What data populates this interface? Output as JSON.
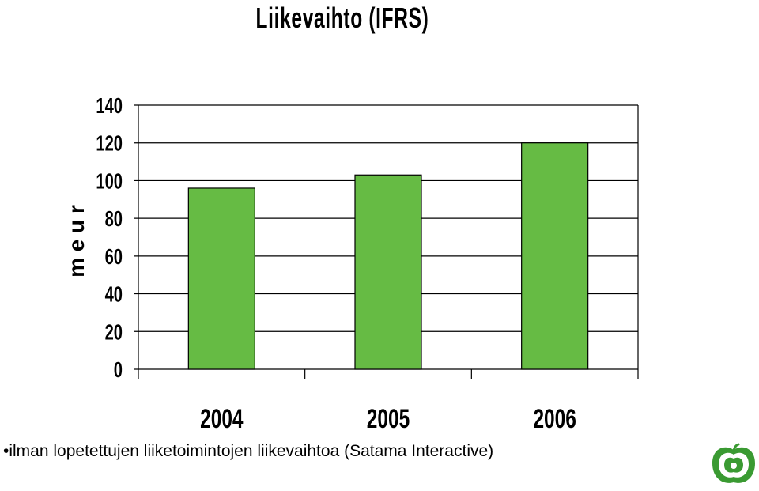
{
  "chart_data": {
    "type": "bar",
    "title": "Liikevaihto (IFRS)",
    "ylabel": "m e u r",
    "xlabel": "",
    "categories": [
      "2004",
      "2005",
      "2006"
    ],
    "values": [
      96,
      103,
      120
    ],
    "ylim": [
      0,
      140
    ],
    "yticks": [
      "0",
      "20",
      "40",
      "60",
      "80",
      "100",
      "120",
      "140"
    ],
    "grid": true,
    "bar_color": "#66bb44",
    "legend": "none"
  },
  "footnote": "•ilman lopetettujen liiketoimintojen liikevaihtoa (Satama Interactive)",
  "logo_icon": "green-apple-logo-icon",
  "colors": {
    "bar": "#66bb44",
    "logo": "#3a9a32"
  }
}
